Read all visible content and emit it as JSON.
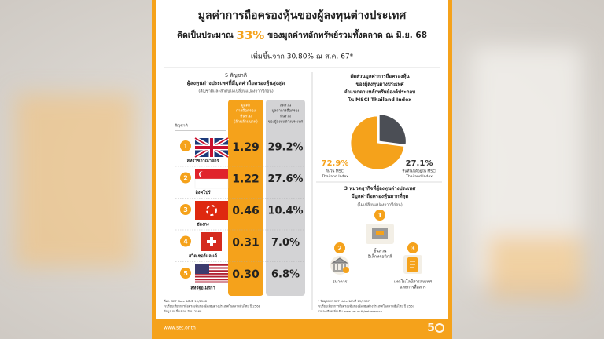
{
  "header": {
    "title": "มูลค่าการถือครองหุ้นของผู้ลงทุนต่างประเทศ",
    "subtitle_parts": [
      "คิดเป็นประมาณ ",
      "33%",
      " ของมูลค่าหลักทรัพย์รวมทั้งตลาด ณ มิ.ย. 68"
    ],
    "change": "เพิ่มขึ้นจาก 30.80% ณ ส.ค. 67*"
  },
  "nationalities": {
    "title": "5 สัญชาติ",
    "subtitle": "ผู้ลงทุนต่างประเทศที่มีมูลค่าถือครองหุ้นสูงสุด",
    "note": "(สัญชาติและลำดับไม่เปลี่ยนแปลงจากปีก่อน)",
    "columns": {
      "name": "สัญชาติ",
      "value": [
        "มูลค่า",
        "การถือครอง",
        "หุ้นรวม",
        "(ล้านล้านบาท)"
      ],
      "share": [
        "สัดส่วน",
        "มูลค่าการถือครอง",
        "หุ้นรวม",
        "ของผู้ลงทุนต่างประเทศ"
      ]
    },
    "rows": [
      {
        "rank": 1,
        "name": "สหราชอาณาจักร",
        "value": "1.29",
        "share": "29.2%"
      },
      {
        "rank": 2,
        "name": "สิงคโปร์",
        "value": "1.22",
        "share": "27.6%"
      },
      {
        "rank": 3,
        "name": "ฮ่องกง",
        "value": "0.46",
        "share": "10.4%"
      },
      {
        "rank": 4,
        "name": "สวิตเซอร์แลนด์",
        "value": "0.31",
        "share": "7.0%"
      },
      {
        "rank": 5,
        "name": "สหรัฐอเมริกา",
        "value": "0.30",
        "share": "6.8%"
      }
    ],
    "footnotes": [
      "ที่มา: SET Note ฉบับที่ 15/2568",
      "*เปรียบเทียบการถือครองหุ้นของผู้ลงทุนต่างประเทศในตลาดหุ้นไทย ปี 2568",
      "ข้อมูล ณ สิ้นเดือน มิ.ย. 2568"
    ]
  },
  "msci": {
    "title": [
      "สัดส่วนมูลค่าการถือครองหุ้น",
      "ของผู้ลงทุนต่างประเทศ",
      "จำแนกตามหลักทรัพย์องค์ประกอบ",
      "ใน MSCI Thailand Index"
    ],
    "chart_data": {
      "type": "pie",
      "values": [
        72.9,
        27.1
      ],
      "value_labels": [
        "72.9%",
        "27.1%"
      ],
      "categories": [
        [
          "หุ้นใน MSCI",
          "Thailand Index"
        ],
        [
          "หุ้นที่ไม่ได้อยู่ใน MSCI",
          "Thailand Index"
        ]
      ],
      "colors": [
        "#f5a21b",
        "#4b4e55"
      ]
    }
  },
  "sectors": {
    "title": [
      "3 หมวดธุรกิจที่ผู้ลงทุนต่างประเทศ",
      "มีมูลค่าถือครองหุ้นมากที่สุด"
    ],
    "note": "(ไม่เปลี่ยนแปลงจากปีก่อน)",
    "items": [
      {
        "rank": 1,
        "name": [
          "ชิ้นส่วน",
          "อิเล็กทรอนิกส์"
        ]
      },
      {
        "rank": 2,
        "name": [
          "ธนาคาร"
        ]
      },
      {
        "rank": 3,
        "name": [
          "เทคโนโลยีสารสนเทศ",
          "และการสื่อสาร"
        ]
      }
    ],
    "footnotes": [
      "* ข้อมูลจาก SET Note ฉบับที่ 13/2567",
      "*เปรียบเทียบการถือครองหุ้นของผู้ลงทุนต่างประเทศในตลาดหุ้นไทย ปี 2567",
      "รายละเอียดเพิ่มเติม www.set.or.th/setresearch"
    ]
  },
  "footer": {
    "url": "www.set.or.th"
  }
}
